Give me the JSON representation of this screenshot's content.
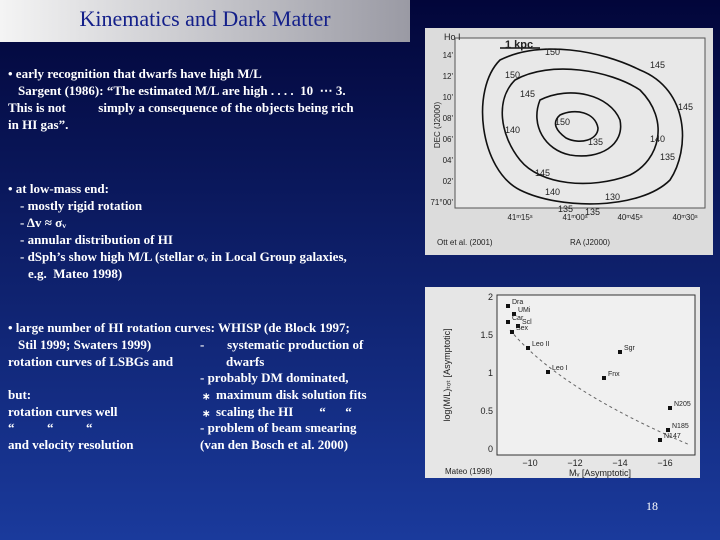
{
  "header": {
    "title": "Kinematics and Dark Matter"
  },
  "body": {
    "block1": [
      "• early recognition that dwarfs have high M/L",
      "Sargent (1986): “The estimated M/L are high . . . .  10  ⋯ 3.",
      "This is not          simply a consequence of the objects being rich",
      "in HI gas”."
    ],
    "block2": [
      "• at low-mass end:",
      "- mostly rigid rotation",
      "- Δv ≈ σᵥ",
      "- annular distribution of HI",
      "- dSph’s show high M/L (stellar σᵥ in Local Group galaxies,",
      "e.g.  Mateo 1998)"
    ],
    "block3": {
      "intro": "• large number of HI rotation curves: WHISP (de Block 1997;",
      "left": [
        "Stil 1999; Swaters 1999)",
        "rotation curves of LSBGs and",
        "but:",
        "rotation curves well",
        "“          “          “",
        "and velocity resolution"
      ],
      "right": [
        "-       systematic production of",
        "dwarfs",
        "- probably DM dominated,",
        "⁎  maximum disk solution fits",
        "⁎  scaling the HI        “      “",
        "- problem of beam smearing",
        "(van den Bosch et al. 2000)"
      ]
    }
  },
  "figure1": {
    "name": "Ho I",
    "scale": "1 kpc",
    "contours": [
      "150",
      "145",
      "150",
      "145",
      "145",
      "150",
      "140",
      "140",
      "135",
      "135",
      "145",
      "140",
      "130",
      "135",
      "135"
    ],
    "yticks": [
      "14'",
      "12'",
      "10'",
      "08'",
      "06'",
      "04'",
      "02'",
      "71°00'"
    ],
    "ylabel": "DEC (J2000)",
    "xticks": [
      "41ᵐ15ˢ",
      "41ᵐ00ˢ",
      "40ᵐ45ˢ",
      "40ᵐ30ˢ"
    ],
    "xlabel": "RA (J2000)",
    "credit": "Ott et al. (2001)"
  },
  "figure2": {
    "points": [
      "Dra",
      "UMi",
      "Car",
      "Scl",
      "Sex",
      "Leo II",
      "Leo I",
      "Sgr",
      "Fnx",
      "N205",
      "N185",
      "N147"
    ],
    "yticks": [
      "2",
      "1.5",
      "1",
      "0.5",
      "0"
    ],
    "ylabel": "log(M/L)ₜₒₜ [Asymptotic]",
    "xticks": [
      "−10",
      "−12",
      "−14",
      "−16"
    ],
    "xlabel": "Mᵥ [Asymptotic]",
    "credit": "Mateo (1998)"
  },
  "footer": {
    "page": "18"
  }
}
